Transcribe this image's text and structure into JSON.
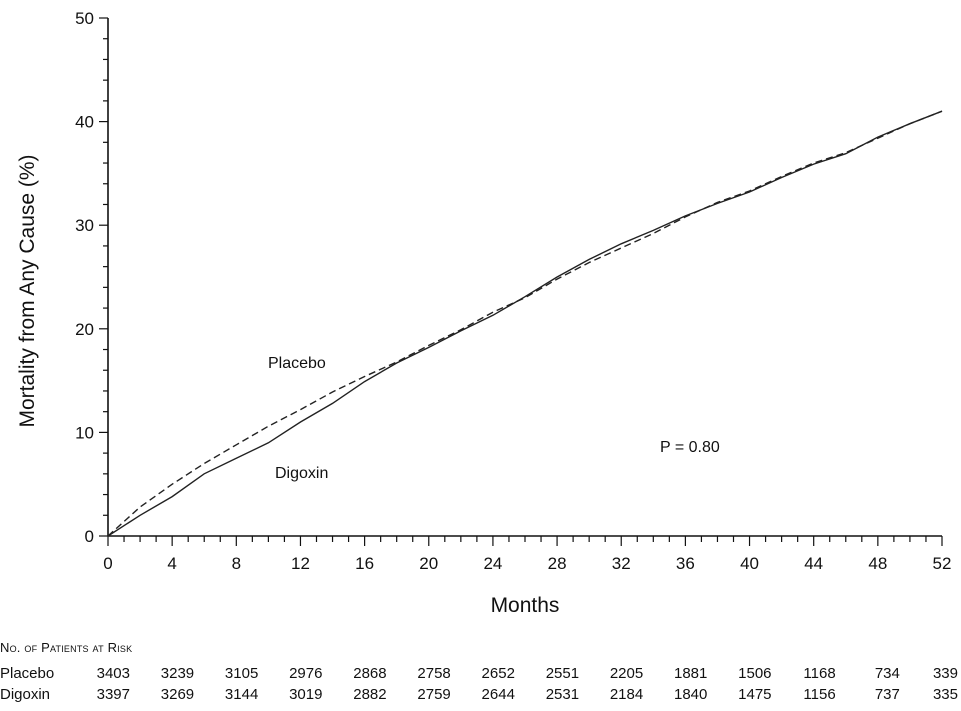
{
  "chart_data": {
    "type": "line",
    "xlabel": "Months",
    "ylabel": "Mortality from Any Cause (%)",
    "xlim": [
      0,
      52
    ],
    "ylim": [
      0,
      50
    ],
    "x_ticks": [
      "0",
      "4",
      "8",
      "12",
      "16",
      "20",
      "24",
      "28",
      "32",
      "36",
      "40",
      "44",
      "48",
      "52"
    ],
    "y_ticks": [
      "0",
      "10",
      "20",
      "30",
      "40",
      "50"
    ],
    "grid": false,
    "series": [
      {
        "name": "Placebo",
        "line_style": "dashed",
        "x": [
          0,
          2,
          4,
          6,
          8,
          10,
          12,
          14,
          16,
          18,
          20,
          22,
          24,
          26,
          28,
          30,
          32,
          34,
          36,
          38,
          40,
          42,
          44,
          46,
          48,
          50,
          52
        ],
        "y": [
          0,
          2.8,
          5.0,
          7.0,
          8.8,
          10.6,
          12.2,
          13.9,
          15.4,
          16.8,
          18.4,
          19.9,
          21.6,
          23.0,
          24.8,
          26.4,
          27.8,
          29.2,
          30.8,
          32.2,
          33.3,
          34.7,
          36.0,
          37.0,
          38.4,
          39.8,
          41.0
        ]
      },
      {
        "name": "Digoxin",
        "line_style": "solid",
        "x": [
          0,
          2,
          4,
          6,
          8,
          10,
          12,
          14,
          16,
          18,
          20,
          22,
          24,
          26,
          28,
          30,
          32,
          34,
          36,
          38,
          40,
          42,
          44,
          46,
          48,
          50,
          52
        ],
        "y": [
          0,
          2.0,
          3.8,
          6.0,
          7.5,
          9.0,
          11.0,
          12.8,
          14.9,
          16.7,
          18.2,
          19.8,
          21.3,
          23.1,
          25.0,
          26.7,
          28.2,
          29.5,
          30.9,
          32.1,
          33.2,
          34.6,
          35.9,
          36.9,
          38.5,
          39.8,
          41.0
        ]
      }
    ],
    "annotations": {
      "placebo_label": "Placebo",
      "digoxin_label": "Digoxin",
      "p_value": "P 0.80",
      "p_value_text": "P = 0.80"
    }
  },
  "risk_table": {
    "title": "No. of Patients at Risk",
    "rows": [
      {
        "label": "Placebo",
        "values": [
          "3403",
          "3239",
          "3105",
          "2976",
          "2868",
          "2758",
          "2652",
          "2551",
          "2205",
          "1881",
          "1506",
          "1168",
          "734",
          "339"
        ]
      },
      {
        "label": "Digoxin",
        "values": [
          "3397",
          "3269",
          "3144",
          "3019",
          "2882",
          "2759",
          "2644",
          "2531",
          "2184",
          "1840",
          "1475",
          "1156",
          "737",
          "335"
        ]
      }
    ]
  }
}
